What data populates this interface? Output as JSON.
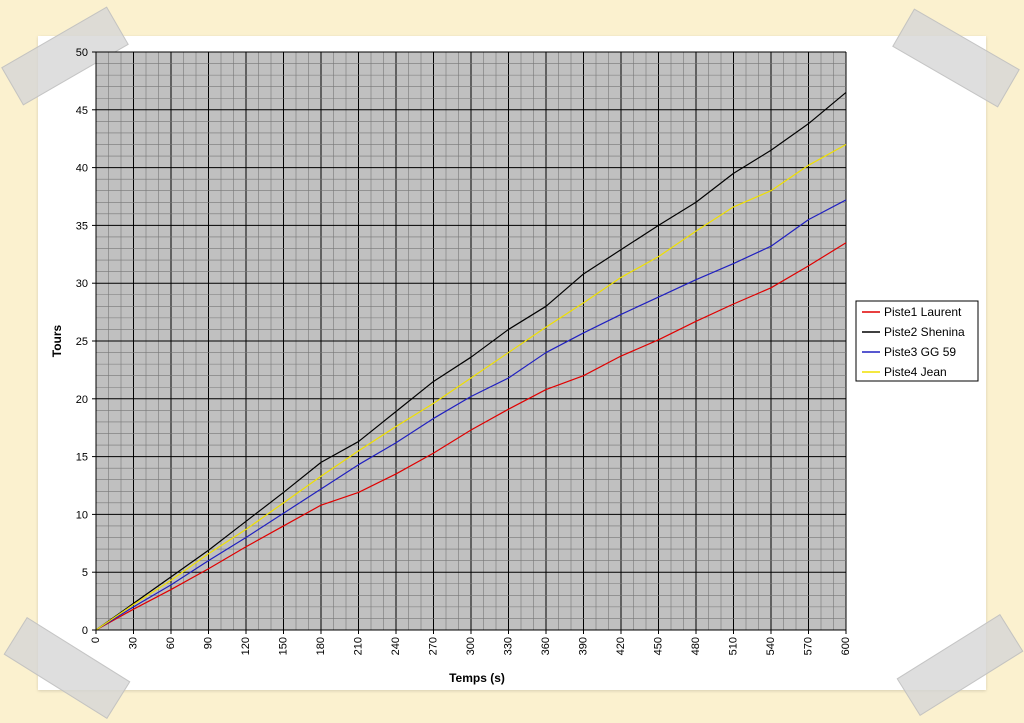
{
  "chart_data": {
    "type": "line",
    "title": "",
    "xlabel": "Temps (s)",
    "ylabel": "Tours",
    "xlim": [
      0,
      600
    ],
    "ylim": [
      0,
      50
    ],
    "x_ticks": [
      "0",
      "30",
      "60",
      "90",
      "120",
      "150",
      "180",
      "210",
      "240",
      "270",
      "300",
      "330",
      "360",
      "390",
      "420",
      "450",
      "480",
      "510",
      "540",
      "570",
      "600"
    ],
    "y_ticks": [
      "0",
      "5",
      "10",
      "15",
      "20",
      "25",
      "30",
      "35",
      "40",
      "45",
      "50"
    ],
    "grid": true,
    "plot_background": "#c0c0c0",
    "legend_position": "right",
    "x": [
      0,
      30,
      60,
      90,
      120,
      150,
      180,
      210,
      240,
      270,
      300,
      330,
      360,
      390,
      420,
      450,
      480,
      510,
      540,
      570,
      600
    ],
    "series": [
      {
        "name": "Piste1 Laurent",
        "color": "#e00000",
        "values": [
          0,
          1.8,
          3.5,
          5.3,
          7.2,
          9.0,
          10.8,
          11.9,
          13.5,
          15.3,
          17.3,
          19.1,
          20.8,
          22.0,
          23.7,
          25.1,
          26.7,
          28.2,
          29.6,
          31.5,
          33.5
        ]
      },
      {
        "name": "Piste2 Shenina",
        "color": "#000000",
        "values": [
          0,
          2.3,
          4.6,
          6.9,
          9.4,
          11.9,
          14.5,
          16.3,
          18.9,
          21.5,
          23.6,
          26.0,
          28.0,
          30.8,
          32.9,
          35.0,
          37.0,
          39.5,
          41.5,
          43.8,
          46.5
        ]
      },
      {
        "name": "Piste3 GG 59",
        "color": "#2020c0",
        "values": [
          0,
          2.0,
          3.9,
          6.0,
          8.0,
          10.1,
          12.2,
          14.3,
          16.2,
          18.3,
          20.2,
          21.8,
          24.0,
          25.7,
          27.3,
          28.8,
          30.3,
          31.7,
          33.2,
          35.5,
          37.2
        ]
      },
      {
        "name": "Piste4 Jean",
        "color": "#f0e000",
        "values": [
          0,
          2.2,
          4.3,
          6.6,
          8.7,
          11.0,
          13.3,
          15.5,
          17.6,
          19.6,
          21.8,
          24.0,
          26.2,
          28.3,
          30.5,
          32.3,
          34.5,
          36.6,
          38.0,
          40.2,
          42.0
        ]
      }
    ]
  }
}
